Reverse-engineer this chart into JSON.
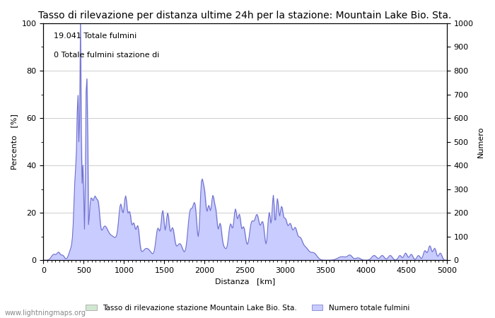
{
  "title": "Tasso di rilevazione per distanza ultime 24h per la stazione: Mountain Lake Bio. Sta.",
  "xlabel": "Distanza   [km]",
  "ylabel_left": "Percento   [%]",
  "ylabel_right": "Numero",
  "annotation_line1": "19.041 Totale fulmini",
  "annotation_line2": "0 Totale fulmini stazione di",
  "xlim": [
    0,
    5000
  ],
  "ylim_left": [
    0,
    100
  ],
  "ylim_right": [
    0,
    1000
  ],
  "xticks": [
    0,
    500,
    1000,
    1500,
    2000,
    2500,
    3000,
    3500,
    4000,
    4500,
    5000
  ],
  "yticks_left": [
    0,
    20,
    40,
    60,
    80,
    100
  ],
  "yticks_right": [
    0,
    100,
    200,
    300,
    400,
    500,
    600,
    700,
    800,
    900,
    1000
  ],
  "legend_label_green": "Tasso di rilevazione stazione Mountain Lake Bio. Sta.",
  "legend_label_blue": "Numero totale fulmini",
  "fill_color": "#c8ccff",
  "line_color": "#7070cc",
  "green_fill_color": "#d0e8d0",
  "background_color": "#ffffff",
  "grid_color": "#bbbbbb",
  "title_fontsize": 10,
  "axis_fontsize": 8,
  "tick_fontsize": 8,
  "watermark": "www.lightningmaps.org"
}
